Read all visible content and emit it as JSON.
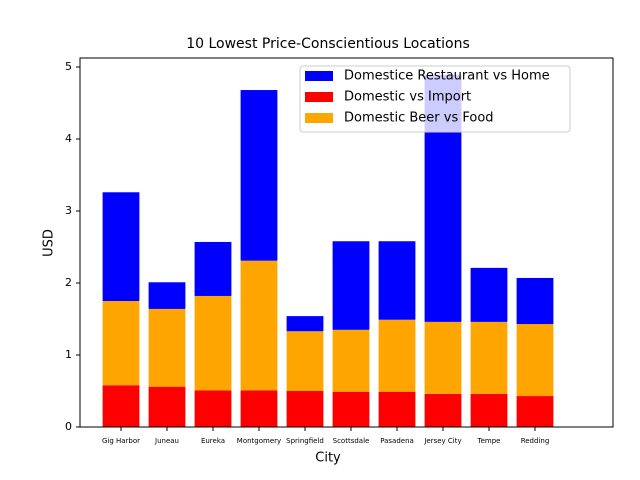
{
  "chart_data": {
    "type": "stacked_bar",
    "title": "10 Lowest Price-Conscientious Locations",
    "x_label": "City",
    "y_label": "USD",
    "categories": [
      "Gig Harbor",
      "Juneau",
      "Eureka",
      "Montgomery",
      "Springfield",
      "Scottsdale",
      "Pasadena",
      "Jersey City",
      "Tempe",
      "Redding"
    ],
    "series": [
      {
        "name": "Domestice Restaurant vs Home",
        "color": "#0000ff",
        "values": [
          1.51,
          0.37,
          0.75,
          2.37,
          0.21,
          1.23,
          1.09,
          3.43,
          0.75,
          0.64
        ]
      },
      {
        "name": "Domestic vs Import",
        "color": "#ff0000",
        "values": [
          0.58,
          0.56,
          0.51,
          0.51,
          0.5,
          0.49,
          0.49,
          0.46,
          0.46,
          0.43
        ]
      },
      {
        "name": "Domestic Beer vs Food",
        "color": "#ffa500",
        "values": [
          1.17,
          1.08,
          1.31,
          1.8,
          0.83,
          0.86,
          1.0,
          1.0,
          1.0,
          1.0
        ]
      }
    ],
    "ylim": [
      0,
      5.125
    ],
    "yticks": [
      0,
      1,
      2,
      3,
      4,
      5
    ],
    "legend": "upper right"
  }
}
